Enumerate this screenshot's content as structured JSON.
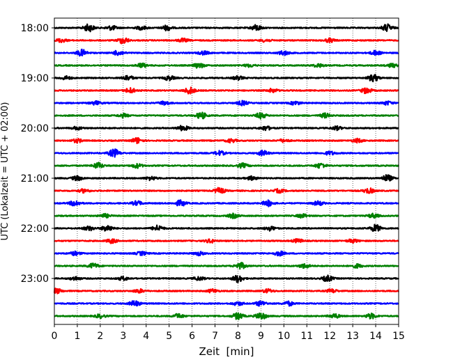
{
  "chart_data": {
    "type": "line",
    "title": "",
    "xlabel": "Zeit  [min]",
    "ylabel": "UTC (Lokalzeit = UTC + 02:00)",
    "xlim": [
      0,
      15
    ],
    "x_ticks": [
      "0",
      "1",
      "2",
      "3",
      "4",
      "5",
      "6",
      "7",
      "8",
      "9",
      "10",
      "11",
      "12",
      "13",
      "14",
      "15"
    ],
    "y_ticks": [
      "18:00",
      "19:00",
      "20:00",
      "21:00",
      "22:00",
      "23:00"
    ],
    "grid": "vertical dotted at each minute",
    "trace_colors": [
      "#000000",
      "#ff0000",
      "#0000ff",
      "#008000"
    ],
    "trace_start_times": [
      "18:00",
      "18:15",
      "18:30",
      "18:45",
      "19:00",
      "19:15",
      "19:30",
      "19:45",
      "20:00",
      "20:15",
      "20:30",
      "20:45",
      "21:00",
      "21:15",
      "21:30",
      "21:45",
      "22:00",
      "22:15",
      "22:30",
      "22:45",
      "23:00",
      "23:15",
      "23:30",
      "23:45"
    ],
    "trace_minutes_per_line": 15,
    "bursts": [
      [
        [
          1.5,
          1.0
        ],
        [
          2.5,
          0.6
        ],
        [
          3.8,
          0.5
        ],
        [
          4.9,
          0.7
        ],
        [
          8.8,
          0.8
        ],
        [
          14.5,
          1.0
        ]
      ],
      [
        [
          0.3,
          0.5
        ],
        [
          3.0,
          0.9
        ],
        [
          5.6,
          0.5
        ],
        [
          9.2,
          0.4
        ],
        [
          12.0,
          0.5
        ]
      ],
      [
        [
          1.2,
          0.9
        ],
        [
          2.8,
          0.7
        ],
        [
          6.5,
          0.5
        ],
        [
          10.0,
          0.6
        ],
        [
          14.0,
          0.6
        ]
      ],
      [
        [
          3.8,
          0.6
        ],
        [
          6.3,
          0.7
        ],
        [
          8.5,
          0.4
        ],
        [
          11.5,
          0.5
        ],
        [
          14.7,
          0.5
        ]
      ],
      [
        [
          0.5,
          0.5
        ],
        [
          3.2,
          0.7
        ],
        [
          5.0,
          0.6
        ],
        [
          8.0,
          0.5
        ],
        [
          13.9,
          1.0
        ]
      ],
      [
        [
          3.3,
          0.7
        ],
        [
          5.9,
          0.9
        ],
        [
          9.5,
          0.5
        ],
        [
          13.6,
          0.8
        ]
      ],
      [
        [
          1.8,
          0.5
        ],
        [
          4.8,
          0.5
        ],
        [
          8.2,
          0.6
        ],
        [
          10.5,
          0.5
        ],
        [
          14.5,
          0.5
        ]
      ],
      [
        [
          3.0,
          0.5
        ],
        [
          6.4,
          0.9
        ],
        [
          9.0,
          0.8
        ],
        [
          11.8,
          0.6
        ]
      ],
      [
        [
          1.0,
          0.4
        ],
        [
          5.6,
          0.7
        ],
        [
          9.2,
          0.6
        ],
        [
          12.3,
          0.5
        ]
      ],
      [
        [
          1.0,
          0.5
        ],
        [
          3.6,
          0.8
        ],
        [
          7.7,
          0.5
        ],
        [
          10.0,
          0.4
        ],
        [
          13.2,
          0.5
        ]
      ],
      [
        [
          2.6,
          1.1
        ],
        [
          7.2,
          0.6
        ],
        [
          9.1,
          0.7
        ],
        [
          12.0,
          0.5
        ]
      ],
      [
        [
          1.9,
          0.8
        ],
        [
          3.6,
          0.6
        ],
        [
          8.2,
          0.6
        ],
        [
          11.6,
          0.7
        ]
      ],
      [
        [
          1.0,
          0.6
        ],
        [
          4.2,
          0.5
        ],
        [
          8.6,
          0.5
        ],
        [
          14.5,
          0.9
        ]
      ],
      [
        [
          1.3,
          0.5
        ],
        [
          7.2,
          0.8
        ],
        [
          9.8,
          0.5
        ],
        [
          13.7,
          0.7
        ]
      ],
      [
        [
          0.9,
          0.8
        ],
        [
          3.6,
          0.6
        ],
        [
          5.5,
          0.8
        ],
        [
          9.3,
          0.8
        ],
        [
          11.5,
          0.6
        ]
      ],
      [
        [
          2.2,
          0.5
        ],
        [
          7.8,
          0.6
        ],
        [
          10.8,
          0.5
        ],
        [
          13.9,
          0.6
        ]
      ],
      [
        [
          1.5,
          0.6
        ],
        [
          2.3,
          0.9
        ],
        [
          4.5,
          0.8
        ],
        [
          9.4,
          0.6
        ],
        [
          14.0,
          1.0
        ]
      ],
      [
        [
          2.5,
          0.6
        ],
        [
          6.8,
          0.5
        ],
        [
          10.6,
          0.5
        ],
        [
          13.0,
          0.5
        ]
      ],
      [
        [
          0.9,
          0.5
        ],
        [
          3.8,
          0.5
        ],
        [
          6.3,
          0.5
        ],
        [
          9.8,
          0.6
        ]
      ],
      [
        [
          1.7,
          0.7
        ],
        [
          8.1,
          0.9
        ],
        [
          10.9,
          0.6
        ],
        [
          13.2,
          0.5
        ]
      ],
      [
        [
          0.9,
          0.5
        ],
        [
          3.0,
          0.5
        ],
        [
          6.3,
          0.5
        ],
        [
          8.0,
          1.0
        ],
        [
          11.9,
          0.8
        ]
      ],
      [
        [
          0.1,
          0.7
        ],
        [
          3.7,
          0.5
        ],
        [
          6.9,
          0.5
        ],
        [
          9.3,
          0.5
        ],
        [
          12.1,
          0.5
        ]
      ],
      [
        [
          3.5,
          0.8
        ],
        [
          8.0,
          0.5
        ],
        [
          9.0,
          0.7
        ],
        [
          10.2,
          0.6
        ]
      ],
      [
        [
          2.0,
          0.5
        ],
        [
          5.4,
          0.6
        ],
        [
          8.0,
          0.9
        ],
        [
          9.0,
          1.0
        ],
        [
          12.2,
          0.6
        ],
        [
          13.8,
          0.7
        ]
      ]
    ]
  }
}
